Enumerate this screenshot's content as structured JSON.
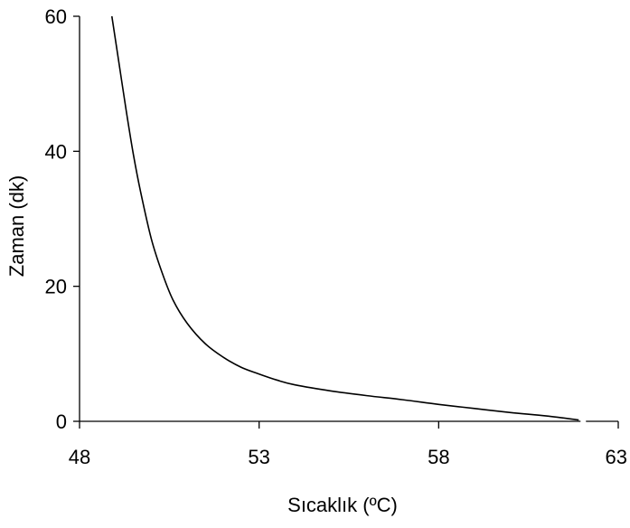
{
  "chart_data": {
    "type": "line",
    "title": "",
    "xlabel": "Sıcaklık (ºC)",
    "ylabel": "Zaman (dk)",
    "xlim": [
      48,
      63
    ],
    "ylim": [
      0,
      60
    ],
    "x_ticks": [
      48,
      53,
      58,
      63
    ],
    "y_ticks": [
      0,
      20,
      40,
      60
    ],
    "grid": false,
    "legend": "none",
    "series": [
      {
        "color": "#000000",
        "x": [
          48.9,
          49.1,
          49.3,
          49.5,
          49.7,
          50.0,
          50.3,
          50.6,
          51.0,
          51.5,
          52.0,
          52.5,
          53.0,
          53.5,
          54.0,
          55.0,
          56.0,
          57.0,
          58.0,
          59.0,
          60.0,
          61.0,
          61.9
        ],
        "y": [
          60.0,
          53.0,
          46.0,
          39.5,
          34.0,
          27.0,
          22.0,
          18.0,
          14.5,
          11.5,
          9.5,
          8.0,
          7.0,
          6.1,
          5.4,
          4.5,
          3.8,
          3.2,
          2.5,
          1.9,
          1.3,
          0.8,
          0.2
        ]
      }
    ]
  }
}
